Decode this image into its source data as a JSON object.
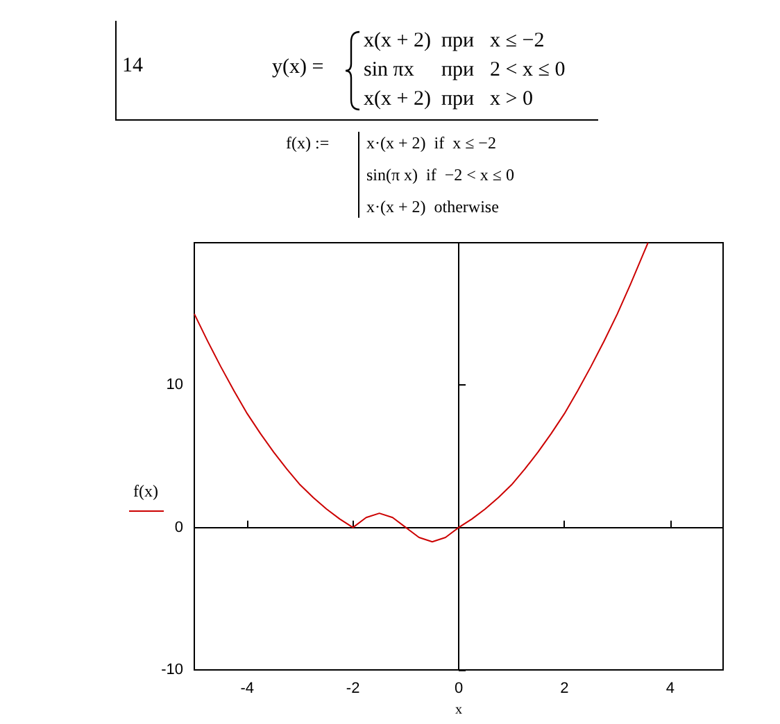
{
  "chart_data": {
    "type": "line",
    "xlabel": "x",
    "ylabel": "f(x)",
    "annotations": [
      "14",
      "y(x) =",
      "x(x + 2)",
      "при",
      "x ≤ −2",
      "sin πx",
      "при",
      "2 < x ≤ 0",
      "x(x + 2)",
      "при",
      "x > 0",
      "f(x) :=",
      "x·(x + 2)  if  x ≤ −2",
      "sin(π x)  if  −2 < x ≤ 0",
      "x·(x + 2)  otherwise"
    ],
    "xlim": [
      -5,
      5
    ],
    "xticks": [
      -4,
      -2,
      0,
      2,
      4
    ],
    "ylim": [
      -10,
      20
    ],
    "yticks": [
      -10,
      0,
      10
    ],
    "marker": "none",
    "line_style": "solid",
    "series": [
      {
        "color": "#cc0000",
        "x": [
          -5,
          -4.75,
          -4.5,
          -4.25,
          -4,
          -3.75,
          -3.5,
          -3.25,
          -3,
          -2.75,
          -2.5,
          -2.25,
          -2,
          -1.75,
          -1.5,
          -1.25,
          -1,
          -0.75,
          -0.5,
          -0.25,
          0,
          0.25,
          0.5,
          0.75,
          1,
          1.25,
          1.5,
          1.75,
          2,
          2.25,
          2.5,
          2.75,
          3,
          3.25,
          3.5,
          3.58
        ],
        "values": [
          15,
          13.1,
          11.3,
          9.6,
          8,
          6.6,
          5.3,
          4.1,
          3,
          2.1,
          1.3,
          0.6,
          0,
          0.7,
          1,
          0.7,
          0,
          -0.7,
          -1,
          -0.7,
          0,
          0.6,
          1.3,
          2.1,
          3,
          4.1,
          5.3,
          6.6,
          8,
          9.6,
          11.3,
          13.1,
          15,
          17.1,
          19.3,
          20
        ]
      }
    ]
  }
}
